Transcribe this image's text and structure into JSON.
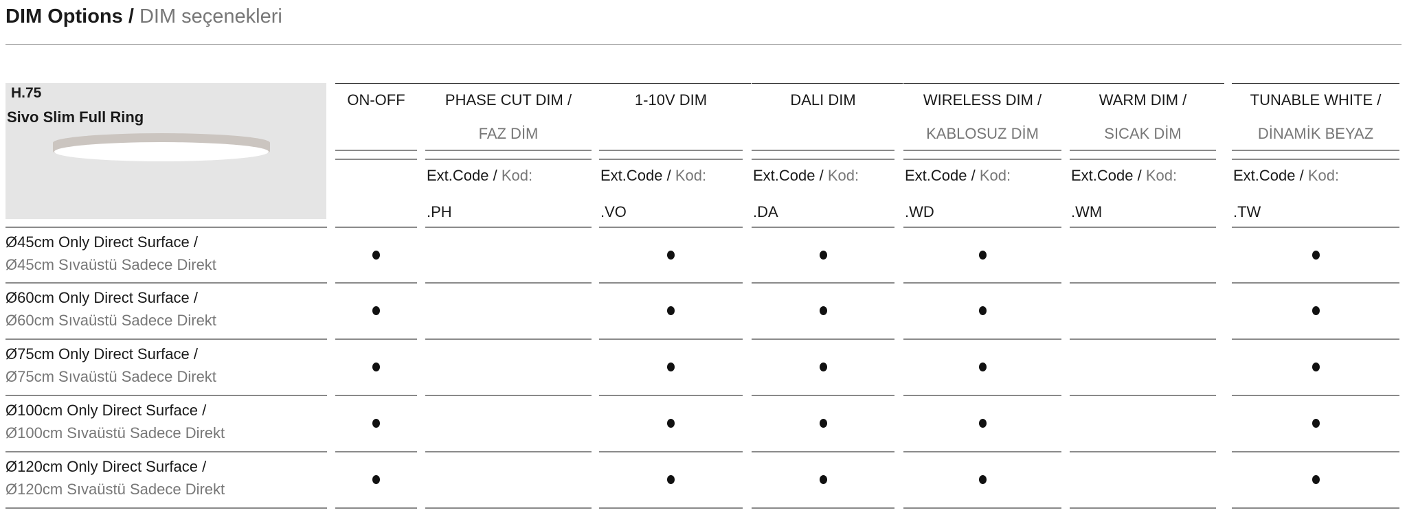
{
  "title": {
    "bold": "DIM Options /",
    "sub": "DIM seçenekleri"
  },
  "product": {
    "code": "H.75",
    "name": "Sivo Slim Full Ring",
    "image": "ceiling-ring-luminaire"
  },
  "columns": [
    {
      "line1": "ON-OFF",
      "line2": "",
      "ext_label": "",
      "kod_label": "",
      "code": ""
    },
    {
      "line1": "PHASE CUT DIM /",
      "line2": "FAZ DİM",
      "ext_label": "Ext.Code /",
      "kod_label": "Kod:",
      "code": ".PH"
    },
    {
      "line1": "1-10V DIM",
      "line2": "",
      "ext_label": "Ext.Code /",
      "kod_label": "Kod:",
      "code": ".VO"
    },
    {
      "line1": "DALI DIM",
      "line2": "",
      "ext_label": "Ext.Code /",
      "kod_label": "Kod:",
      "code": ".DA"
    },
    {
      "line1": "WIRELESS DIM /",
      "line2": "KABLOSUZ DİM",
      "ext_label": "Ext.Code /",
      "kod_label": "Kod:",
      "code": ".WD"
    },
    {
      "line1": "WARM DIM /",
      "line2": "SICAK DİM",
      "ext_label": "Ext.Code /",
      "kod_label": "Kod:",
      "code": ".WM"
    },
    {
      "line1": "TUNABLE WHITE /",
      "line2": "DİNAMİK BEYAZ",
      "ext_label": "Ext.Code /",
      "kod_label": "Kod:",
      "code": ".TW"
    }
  ],
  "rows": [
    {
      "en": "Ø45cm Only Direct Surface /",
      "tr": "Ø45cm Sıvaüstü Sadece Direkt",
      "available": [
        true,
        false,
        true,
        true,
        true,
        false,
        true
      ]
    },
    {
      "en": "Ø60cm Only Direct Surface /",
      "tr": "Ø60cm Sıvaüstü Sadece Direkt",
      "available": [
        true,
        false,
        true,
        true,
        true,
        false,
        true
      ]
    },
    {
      "en": "Ø75cm Only Direct Surface /",
      "tr": "Ø75cm Sıvaüstü Sadece Direkt",
      "available": [
        true,
        false,
        true,
        true,
        true,
        false,
        true
      ]
    },
    {
      "en": "Ø100cm Only Direct Surface /",
      "tr": "Ø100cm Sıvaüstü Sadece Direkt",
      "available": [
        true,
        false,
        true,
        true,
        true,
        false,
        true
      ]
    },
    {
      "en": "Ø120cm Only Direct Surface /",
      "tr": "Ø120cm Sıvaüstü Sadece Direkt",
      "available": [
        true,
        false,
        true,
        true,
        true,
        false,
        true
      ]
    }
  ],
  "colors": {
    "text": "#1a1a1a",
    "secondary": "#777777",
    "box": "#e5e5e5",
    "rule": "#8a8a8a"
  }
}
